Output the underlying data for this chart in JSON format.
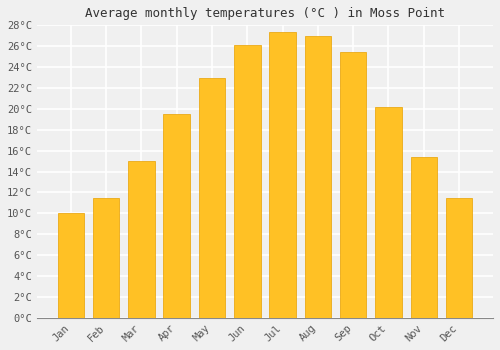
{
  "title": "Average monthly temperatures (°C ) in Moss Point",
  "months": [
    "Jan",
    "Feb",
    "Mar",
    "Apr",
    "May",
    "Jun",
    "Jul",
    "Aug",
    "Sep",
    "Oct",
    "Nov",
    "Dec"
  ],
  "values": [
    10.0,
    11.5,
    15.0,
    19.5,
    23.0,
    26.1,
    27.4,
    27.0,
    25.4,
    20.2,
    15.4,
    11.5
  ],
  "bar_color_main": "#FFC125",
  "bar_color_edge": "#E8A000",
  "ylim": [
    0,
    28
  ],
  "ytick_step": 2,
  "background_color": "#f0f0f0",
  "grid_color": "#ffffff",
  "title_fontsize": 9,
  "tick_fontsize": 7.5,
  "font_family": "monospace"
}
